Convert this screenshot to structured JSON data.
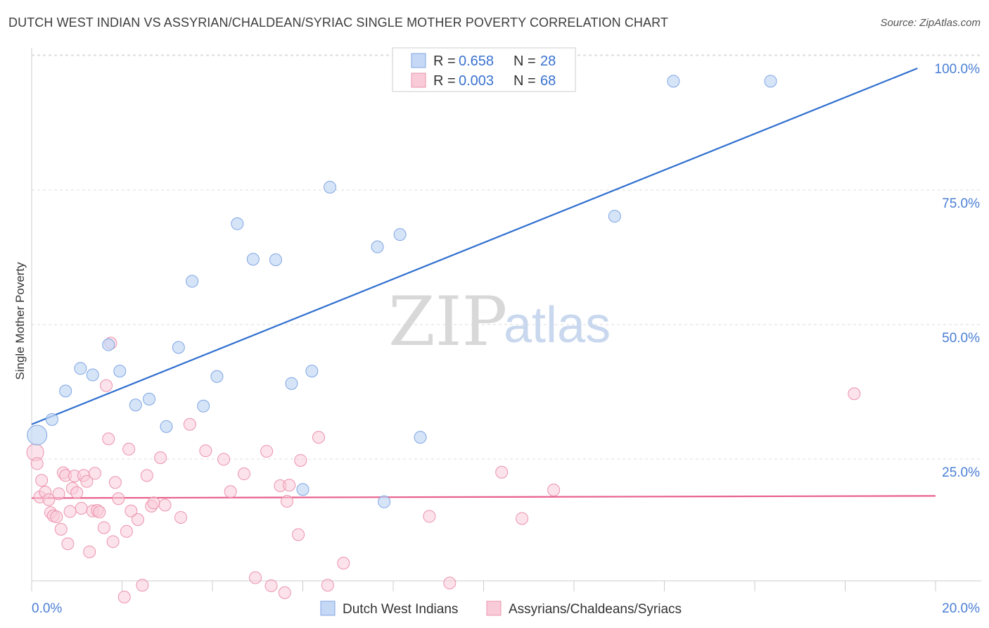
{
  "title": "DUTCH WEST INDIAN VS ASSYRIAN/CHALDEAN/SYRIAC SINGLE MOTHER POVERTY CORRELATION CHART",
  "source": "Source: ZipAtlas.com",
  "watermark": {
    "zip": "ZIP",
    "atlas": "atlas"
  },
  "colors": {
    "blue_fill": "#c5d8f5",
    "blue_stroke": "#7fa6e3",
    "blue_line": "#2f6fcf",
    "pink_fill": "#f9cbd8",
    "pink_stroke": "#eb93ae",
    "pink_line": "#e8608c",
    "tick_text": "#4a7fd4",
    "grid": "#dddddd"
  },
  "legend": {
    "rows": [
      {
        "r_label": "R =",
        "r_value": "0.658",
        "n_label": "N =",
        "n_value": "28",
        "color": "blue"
      },
      {
        "r_label": "R =",
        "r_value": "0.003",
        "n_label": "N =",
        "n_value": "68",
        "color": "pink"
      }
    ]
  },
  "bottom_legend": [
    "Dutch West Indians",
    "Assyrians/Chaldeans/Syriacs"
  ],
  "chart_data": {
    "type": "scatter",
    "title": "DUTCH WEST INDIAN VS ASSYRIAN/CHALDEAN/SYRIAC SINGLE MOTHER POVERTY CORRELATION CHART",
    "xlabel": "",
    "ylabel": "Single Mother Poverty",
    "xlim": [
      0,
      20
    ],
    "ylim": [
      0,
      105
    ],
    "x_tick_labels": [
      "0.0%",
      "20.0%"
    ],
    "y_tick_labels": [
      "25.0%",
      "50.0%",
      "75.0%",
      "100.0%"
    ],
    "y_ticks": [
      25,
      50,
      75,
      100
    ],
    "grid": true,
    "series": [
      {
        "name": "Dutch West Indians",
        "color": "blue",
        "r": 0.658,
        "n": 28,
        "trend": {
          "x": [
            0,
            19.6
          ],
          "y": [
            33.8,
            100.0
          ]
        },
        "points": [
          [
            0.12,
            31.8
          ],
          [
            0.45,
            34.7
          ],
          [
            0.75,
            40.0
          ],
          [
            1.08,
            44.2
          ],
          [
            1.35,
            43.0
          ],
          [
            1.7,
            48.6
          ],
          [
            1.95,
            43.7
          ],
          [
            2.3,
            37.4
          ],
          [
            2.6,
            38.5
          ],
          [
            2.98,
            33.4
          ],
          [
            3.25,
            48.1
          ],
          [
            3.55,
            60.4
          ],
          [
            3.8,
            37.2
          ],
          [
            4.1,
            42.7
          ],
          [
            4.55,
            71.1
          ],
          [
            4.9,
            64.5
          ],
          [
            5.4,
            64.4
          ],
          [
            5.75,
            41.4
          ],
          [
            6.0,
            21.7
          ],
          [
            6.2,
            43.7
          ],
          [
            6.6,
            77.9
          ],
          [
            7.65,
            66.8
          ],
          [
            7.8,
            19.4
          ],
          [
            8.15,
            69.1
          ],
          [
            8.6,
            31.4
          ],
          [
            12.9,
            72.5
          ],
          [
            14.2,
            97.6
          ],
          [
            16.35,
            97.6
          ]
        ]
      },
      {
        "name": "Assyrians/Chaldeans/Syriacs",
        "color": "pink",
        "r": 0.003,
        "n": 68,
        "trend": {
          "x": [
            0,
            20
          ],
          "y": [
            20.1,
            20.5
          ]
        },
        "points": [
          [
            0.08,
            28.6
          ],
          [
            0.12,
            26.5
          ],
          [
            0.18,
            20.3
          ],
          [
            0.22,
            23.4
          ],
          [
            0.3,
            21.2
          ],
          [
            0.38,
            19.8
          ],
          [
            0.42,
            17.4
          ],
          [
            0.48,
            16.8
          ],
          [
            0.55,
            16.6
          ],
          [
            0.6,
            20.9
          ],
          [
            0.65,
            14.3
          ],
          [
            0.7,
            24.8
          ],
          [
            0.75,
            24.3
          ],
          [
            0.8,
            11.6
          ],
          [
            0.85,
            17.6
          ],
          [
            0.9,
            21.9
          ],
          [
            0.95,
            24.2
          ],
          [
            1.0,
            21.1
          ],
          [
            1.1,
            18.2
          ],
          [
            1.15,
            24.3
          ],
          [
            1.22,
            23.2
          ],
          [
            1.28,
            10.1
          ],
          [
            1.35,
            17.7
          ],
          [
            1.4,
            24.7
          ],
          [
            1.45,
            17.8
          ],
          [
            1.5,
            17.5
          ],
          [
            1.6,
            14.6
          ],
          [
            1.65,
            41.0
          ],
          [
            1.7,
            31.1
          ],
          [
            1.75,
            48.9
          ],
          [
            1.8,
            12.0
          ],
          [
            1.85,
            23.0
          ],
          [
            1.92,
            20.0
          ],
          [
            2.05,
            1.7
          ],
          [
            2.1,
            13.9
          ],
          [
            2.15,
            29.2
          ],
          [
            2.2,
            17.7
          ],
          [
            2.35,
            16.1
          ],
          [
            2.45,
            3.9
          ],
          [
            2.55,
            24.3
          ],
          [
            2.65,
            18.6
          ],
          [
            2.7,
            19.2
          ],
          [
            2.85,
            27.6
          ],
          [
            2.95,
            18.8
          ],
          [
            3.3,
            16.5
          ],
          [
            3.5,
            33.8
          ],
          [
            3.85,
            28.9
          ],
          [
            4.25,
            27.3
          ],
          [
            4.4,
            21.3
          ],
          [
            4.7,
            24.6
          ],
          [
            4.95,
            5.3
          ],
          [
            5.2,
            28.8
          ],
          [
            5.3,
            3.8
          ],
          [
            5.5,
            22.4
          ],
          [
            5.6,
            2.5
          ],
          [
            5.65,
            19.5
          ],
          [
            5.7,
            22.5
          ],
          [
            5.9,
            13.3
          ],
          [
            5.95,
            27.1
          ],
          [
            6.35,
            31.4
          ],
          [
            6.55,
            3.9
          ],
          [
            6.9,
            8.0
          ],
          [
            8.8,
            16.7
          ],
          [
            9.25,
            4.3
          ],
          [
            10.4,
            24.9
          ],
          [
            10.85,
            16.3
          ],
          [
            11.55,
            21.6
          ],
          [
            18.2,
            39.5
          ]
        ]
      }
    ]
  }
}
